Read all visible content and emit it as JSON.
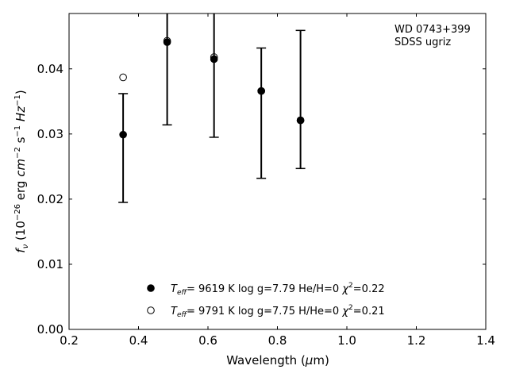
{
  "chart_data": {
    "type": "scatter",
    "title": "",
    "annotation": [
      "WD 0743+399",
      "SDSS ugriz"
    ],
    "xlabel": "Wavelength (μm)",
    "ylabel": "f_ν (10^-26 erg cm^-2 s^-1 Hz^-1)",
    "xlim": [
      0.2,
      1.4
    ],
    "ylim": [
      0.0,
      0.0485
    ],
    "xticks": [
      0.2,
      0.4,
      0.6,
      0.8,
      1.0,
      1.2,
      1.4
    ],
    "xtick_labels": [
      "0.2",
      "0.4",
      "0.6",
      "0.8",
      "1.0",
      "1.2",
      "1.4"
    ],
    "yticks": [
      0.0,
      0.01,
      0.02,
      0.03,
      0.04
    ],
    "ytick_labels": [
      "0.00",
      "0.01",
      "0.02",
      "0.03",
      "0.04"
    ],
    "grid": false,
    "legend_position": "bottom-center",
    "observed": {
      "x": [
        0.3557,
        0.4825,
        0.6175,
        0.7535,
        0.8665
      ],
      "y_low": [
        0.0195,
        0.0314,
        0.0295,
        0.0232,
        0.0247
      ],
      "y_high": [
        0.0362,
        0.049,
        0.049,
        0.0432,
        0.0459
      ]
    },
    "series": [
      {
        "marker": "filled-circle",
        "x": [
          0.3557,
          0.4825,
          0.6175,
          0.7535,
          0.8665
        ],
        "y": [
          0.0299,
          0.0441,
          0.0415,
          0.0366,
          0.0321
        ],
        "legend_parts": {
          "teff": "9619 K",
          "logg": "log g=7.79",
          "comp": "He/H=0",
          "chi": "=0.22"
        }
      },
      {
        "marker": "open-circle",
        "x": [
          0.3557,
          0.4825,
          0.6175,
          0.7535,
          0.8665
        ],
        "y": [
          0.0387,
          0.0443,
          0.0418,
          0.0366,
          0.0321
        ],
        "legend_parts": {
          "teff": "9791 K",
          "logg": "log g=7.75",
          "comp": "H/He=0",
          "chi": "=0.21"
        }
      }
    ]
  }
}
